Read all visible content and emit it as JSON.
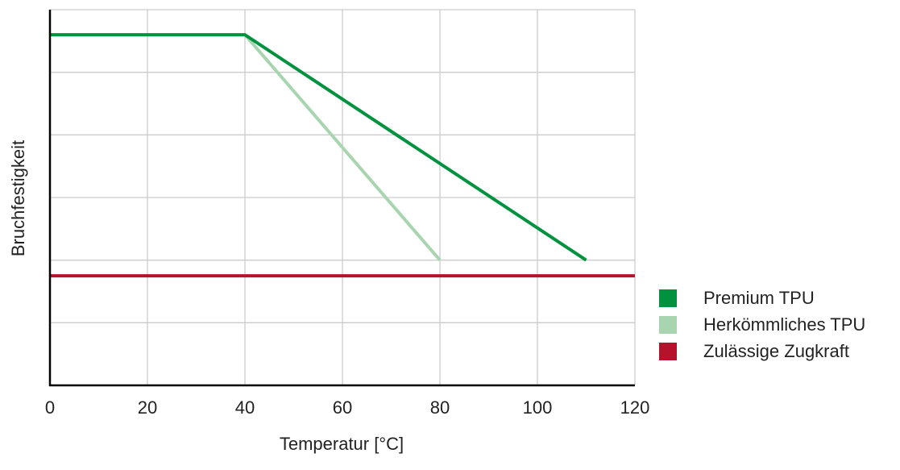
{
  "chart_data": {
    "type": "line",
    "xlabel": "Temperatur [°C]",
    "ylabel": "Bruchfestigkeit",
    "xlim": [
      0,
      120
    ],
    "ylim": [
      0,
      6
    ],
    "x_ticks": [
      "0",
      "20",
      "40",
      "60",
      "80",
      "100",
      "120"
    ],
    "y_ticks_labeled": false,
    "grid": true,
    "legend_position": "right",
    "series": [
      {
        "name": "Premium TPU",
        "color": "#00923f",
        "x": [
          0,
          40,
          110
        ],
        "y": [
          5.6,
          5.6,
          2.0
        ]
      },
      {
        "name": "Herkömmliches TPU",
        "color": "#a8d5b0",
        "x": [
          40,
          80
        ],
        "y": [
          5.6,
          2.0
        ]
      },
      {
        "name": "Zulässige Zugkraft",
        "color": "#b5122c",
        "x": [
          0,
          120
        ],
        "y": [
          1.75,
          1.75
        ]
      }
    ]
  }
}
